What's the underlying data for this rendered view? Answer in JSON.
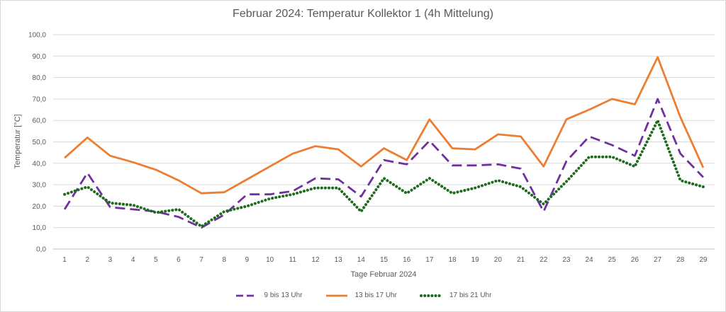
{
  "chart_data": {
    "type": "line",
    "title": "Februar 2024: Temperatur Kollektor 1 (4h Mittelung)",
    "xlabel": "Tage Februar 2024",
    "ylabel": "Temperatur [°C]",
    "ylim": [
      0,
      100
    ],
    "ytick_step": 10,
    "ytick_labels": [
      "0,0",
      "10,0",
      "20,0",
      "30,0",
      "40,0",
      "50,0",
      "60,0",
      "70,0",
      "80,0",
      "90,0",
      "100,0"
    ],
    "grid": true,
    "legend_position": "bottom",
    "x": [
      "1",
      "2",
      "3",
      "4",
      "5",
      "6",
      "7",
      "8",
      "9",
      "10",
      "11",
      "12",
      "13",
      "14",
      "15",
      "16",
      "17",
      "18",
      "19",
      "20",
      "21",
      "22",
      "23",
      "24",
      "25",
      "26",
      "27",
      "28",
      "29"
    ],
    "series": [
      {
        "name": "9 bis 13 Uhr",
        "color": "#7030a0",
        "style": "dashed",
        "values": [
          18.5,
          35.5,
          19.5,
          18.5,
          17.5,
          15.0,
          10.0,
          16.0,
          25.5,
          25.5,
          27.0,
          33.0,
          32.5,
          24.5,
          41.5,
          39.5,
          50.5,
          39.0,
          39.0,
          39.5,
          37.5,
          17.5,
          41.0,
          52.5,
          48.5,
          43.5,
          70.0,
          44.5,
          33.5
        ]
      },
      {
        "name": "13 bis 17 Uhr",
        "color": "#ed7d31",
        "style": "solid",
        "values": [
          42.5,
          52.0,
          43.5,
          40.5,
          37.0,
          32.0,
          26.0,
          26.5,
          32.5,
          38.5,
          44.5,
          48.0,
          46.5,
          38.5,
          47.0,
          41.5,
          60.5,
          47.0,
          46.5,
          53.5,
          52.5,
          38.5,
          60.5,
          65.0,
          70.0,
          67.5,
          89.5,
          61.5,
          38.0
        ]
      },
      {
        "name": "17 bis 21 Uhr",
        "color": "#1e6b1e",
        "style": "dotted",
        "values": [
          25.5,
          29.0,
          21.5,
          20.5,
          17.0,
          18.5,
          10.5,
          17.5,
          20.0,
          23.5,
          25.5,
          28.5,
          28.5,
          17.5,
          33.0,
          26.0,
          33.0,
          26.0,
          28.5,
          32.0,
          29.0,
          21.0,
          31.5,
          43.0,
          43.0,
          38.5,
          60.0,
          32.0,
          29.0
        ]
      }
    ]
  }
}
